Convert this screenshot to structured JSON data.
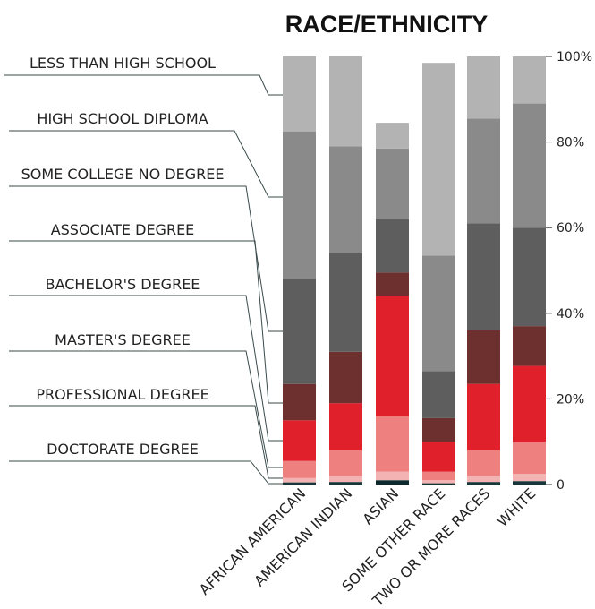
{
  "chart_data": {
    "type": "bar",
    "stacked": true,
    "title": "RACE/ETHNICITY",
    "categories": [
      "AFRICAN AMERICAN",
      "AMERICAN INDIAN",
      "ASIAN",
      "SOME OTHER RACE",
      "TWO OR MORE RACES",
      "WHITE"
    ],
    "yticks": [
      "0",
      "20%",
      "40%",
      "60%",
      "80%",
      "100%"
    ],
    "ylim": [
      0,
      100
    ],
    "legend_position": "left",
    "series": [
      {
        "name": "DOCTORATE DEGREE",
        "color": "#d7e0e0",
        "values": [
          0.5,
          0.6,
          1.0,
          0.3,
          0.6,
          0.8
        ]
      },
      {
        "name": "PROFESSIONAL DEGREE",
        "color": "#f4b3b3",
        "values": [
          1.0,
          1.4,
          2.0,
          0.7,
          1.4,
          1.7
        ]
      },
      {
        "name": "MASTER'S DEGREE",
        "color": "#ef8080",
        "values": [
          4.0,
          6.0,
          13.0,
          2.0,
          6.0,
          7.5
        ]
      },
      {
        "name": "BACHELOR'S DEGREE",
        "color": "#e0202a",
        "values": [
          9.5,
          11.0,
          28.0,
          7.0,
          15.5,
          17.7
        ]
      },
      {
        "name": "ASSOCIATE DEGREE",
        "color": "#6e2f2f",
        "values": [
          8.5,
          12.0,
          5.5,
          5.5,
          12.5,
          9.3
        ]
      },
      {
        "name": "SOME COLLEGE NO DEGREE",
        "color": "#5e5e5e",
        "values": [
          24.5,
          23.0,
          12.5,
          11.0,
          25.0,
          23.0
        ]
      },
      {
        "name": "HIGH SCHOOL DIPLOMA",
        "color": "#8a8a8a",
        "values": [
          34.5,
          25.0,
          16.5,
          27.0,
          24.5,
          29.0
        ]
      },
      {
        "name": "LESS THAN HIGH SCHOOL",
        "color": "#b3b3b3",
        "values": [
          17.5,
          21.0,
          6.0,
          45.0,
          14.5,
          11.0
        ]
      }
    ],
    "top_segment_colors": {
      "ASIAN": "#0c2a2e"
    }
  }
}
